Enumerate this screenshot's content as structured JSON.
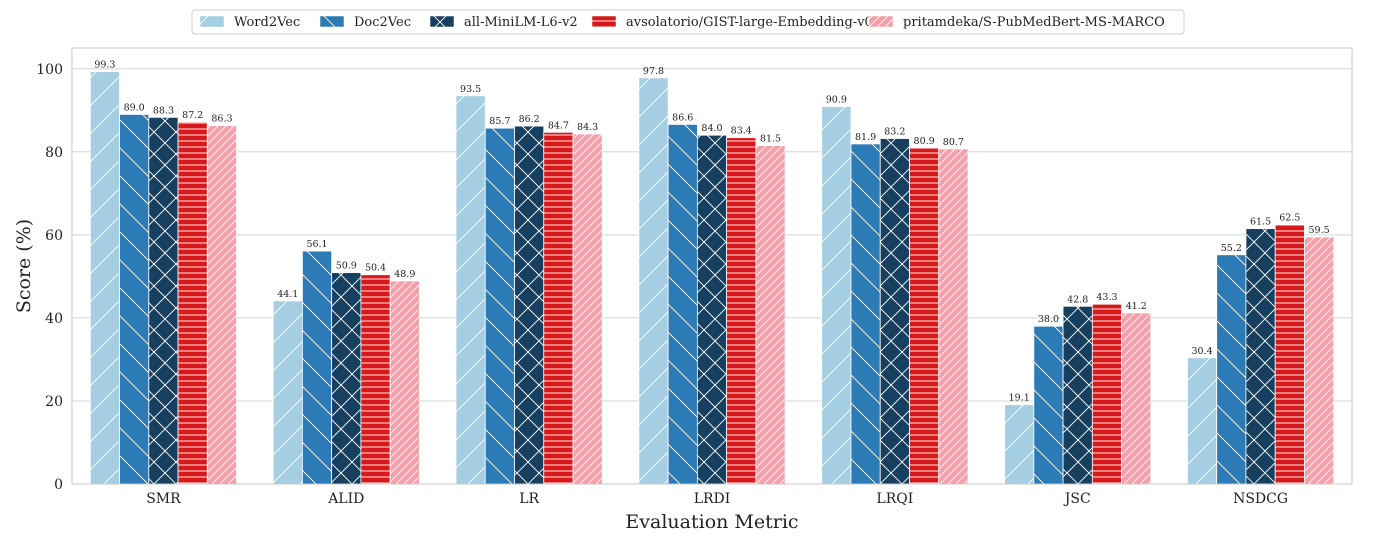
{
  "chart_data": {
    "type": "bar",
    "title": "",
    "xlabel": "Evaluation Metric",
    "ylabel": "Score (%)",
    "ylim": [
      0,
      105
    ],
    "yticks": [
      0,
      20,
      40,
      60,
      80,
      100
    ],
    "grid": "horizontal",
    "legend_position": "top-center",
    "categories": [
      "SMR",
      "ALID",
      "LR",
      "LRDI",
      "LRQI",
      "JSC",
      "NSDCG"
    ],
    "series": [
      {
        "name": "Word2Vec",
        "color": "#a6cee3",
        "pattern": "diagonal-forward",
        "values": [
          99.3,
          44.1,
          93.5,
          97.8,
          90.9,
          19.1,
          30.4
        ]
      },
      {
        "name": "Doc2Vec",
        "color": "#2c7bb6",
        "pattern": "diagonal-back",
        "values": [
          89.0,
          56.1,
          85.7,
          86.6,
          81.9,
          38.0,
          55.2
        ]
      },
      {
        "name": "all-MiniLM-L6-v2",
        "color": "#173f5f",
        "pattern": "crosshatch",
        "values": [
          88.3,
          50.9,
          86.2,
          84.0,
          83.2,
          42.8,
          61.5
        ]
      },
      {
        "name": "avsolatorio/GIST-large-Embedding-v0",
        "color": "#d7191c",
        "pattern": "horizontal",
        "values": [
          87.2,
          50.4,
          84.7,
          83.4,
          80.9,
          43.3,
          62.5
        ]
      },
      {
        "name": "pritamdeka/S-PubMedBert-MS-MARCO",
        "color": "#f4a0aa",
        "pattern": "dense-diagonal",
        "values": [
          86.3,
          48.9,
          84.3,
          81.5,
          80.7,
          41.2,
          59.5
        ]
      }
    ]
  }
}
